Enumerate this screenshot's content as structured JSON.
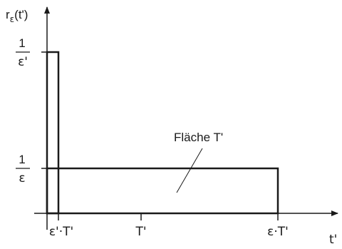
{
  "y_axis": {
    "label_r": "r",
    "label_sub": "ε",
    "label_arg": "(t')"
  },
  "x_axis": {
    "label": "t'"
  },
  "y_ticks": [
    {
      "num": "1",
      "den": "ε'"
    },
    {
      "num": "1",
      "den": "ε"
    }
  ],
  "x_ticks": [
    "ε'·T'",
    "T'",
    "ε·T'"
  ],
  "annotation": "Fläche T'",
  "colors": {
    "stroke": "#1a1a1a"
  }
}
